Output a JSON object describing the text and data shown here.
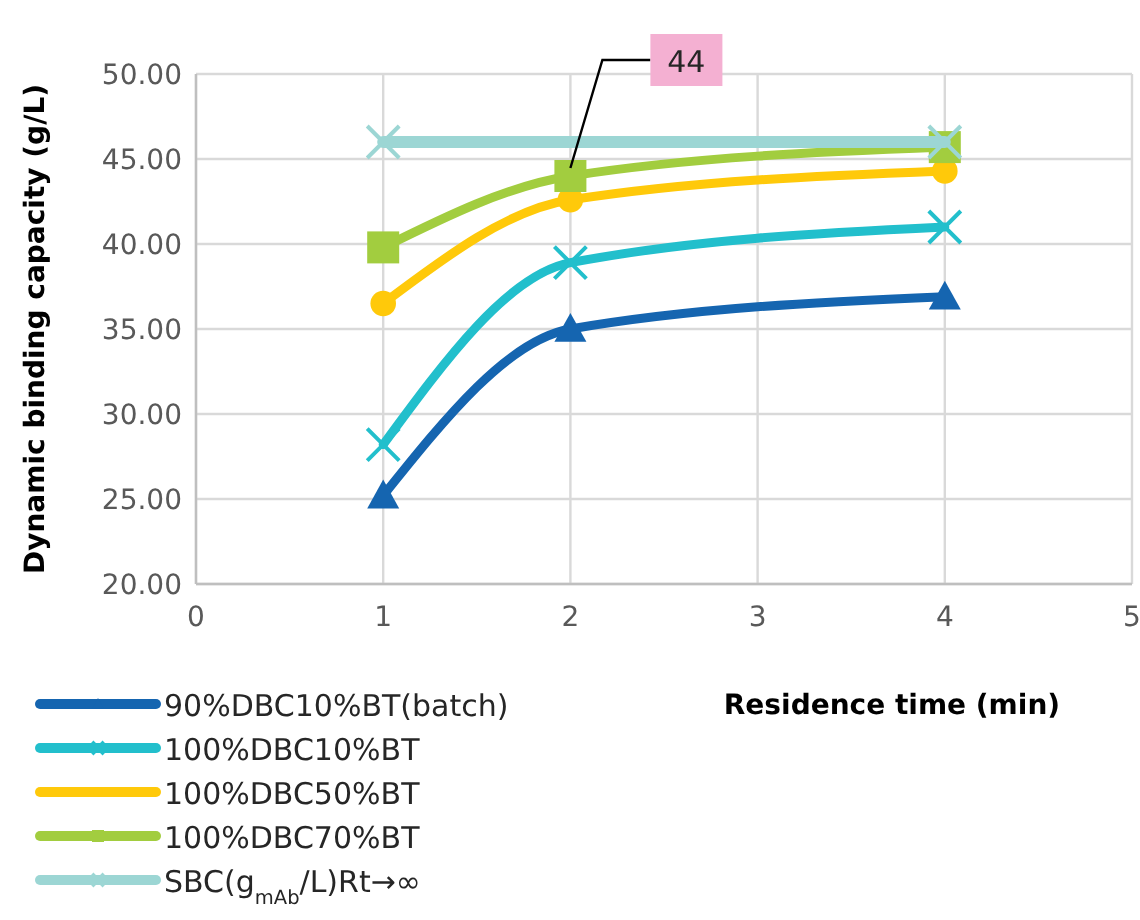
{
  "chart_data": {
    "type": "line",
    "xlabel": "Residence time (min)",
    "ylabel": "Dynamic binding capacity (g/L)",
    "xlim": [
      0,
      5
    ],
    "xticks": [
      0,
      1,
      2,
      3,
      4,
      5
    ],
    "ylim": [
      20,
      50
    ],
    "yticks": [
      {
        "value": 20,
        "label": "20.00"
      },
      {
        "value": 25,
        "label": "25.00"
      },
      {
        "value": 30,
        "label": "30.00"
      },
      {
        "value": 35,
        "label": "35.00"
      },
      {
        "value": 40,
        "label": "40.00"
      },
      {
        "value": 45,
        "label": "45.00"
      },
      {
        "value": 50,
        "label": "50.00"
      }
    ],
    "grid": true,
    "legend": "bottom left",
    "annotations": [
      {
        "text": "44",
        "x": 2,
        "y": 44
      }
    ],
    "series": [
      {
        "name": "90%DBC10%BT(batch)",
        "color": "#1565b0",
        "marker": "triangle",
        "x": [
          1,
          2,
          4
        ],
        "values": [
          25.2,
          35.0,
          36.9
        ]
      },
      {
        "name": "100%DBC10%BT",
        "color": "#22bfcc",
        "marker": "cross",
        "x": [
          1,
          2,
          4
        ],
        "values": [
          28.2,
          38.9,
          41.0
        ]
      },
      {
        "name": "100%DBC50%BT",
        "color": "#ffc90a",
        "marker": "circle",
        "x": [
          1,
          2,
          4
        ],
        "values": [
          36.5,
          42.6,
          44.3
        ]
      },
      {
        "name": "100%DBC70%BT",
        "color": "#a2cd3f",
        "marker": "square",
        "x": [
          1,
          2,
          4
        ],
        "values": [
          39.8,
          44.0,
          45.7
        ]
      },
      {
        "name": "SBC(g$_{mAb}$/L)Rt→∞",
        "color": "#9cd6d4",
        "marker": "cross",
        "x": [
          1,
          4
        ],
        "values": [
          46,
          46
        ]
      }
    ]
  }
}
